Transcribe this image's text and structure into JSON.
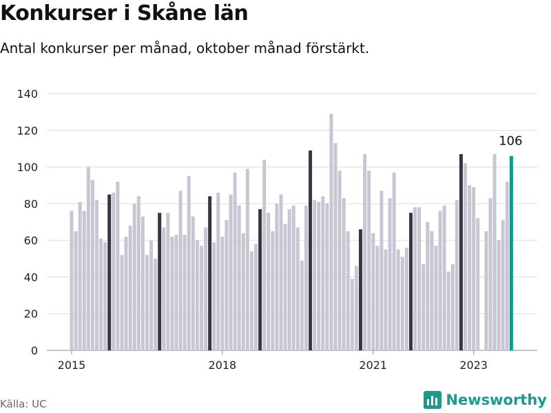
{
  "header": {
    "title": "Konkurser i Skåne län",
    "subtitle": "Antal konkurser per månad, oktober månad förstärkt."
  },
  "footer": {
    "source": "Källa: UC",
    "brand": "Newsworthy",
    "brand_icon": "newsworthy-logo-icon"
  },
  "colors": {
    "bar": "#c8c6d3",
    "highlight": "#373643",
    "latest": "#0e9a8e",
    "grid": "#dcdcdc",
    "brand": "#1a9b8d"
  },
  "chart_data": {
    "type": "bar",
    "title": "Konkurser i Skåne län",
    "subtitle": "Antal konkurser per månad, oktober månad förstärkt.",
    "xlabel": "",
    "ylabel": "",
    "ylim": [
      0,
      140
    ],
    "y_ticks": [
      0,
      20,
      40,
      60,
      80,
      100,
      120,
      140
    ],
    "x_ticks": [
      {
        "label": "2015",
        "index": 0
      },
      {
        "label": "2018",
        "index": 36
      },
      {
        "label": "2021",
        "index": 72
      },
      {
        "label": "2023",
        "index": 96
      }
    ],
    "grid": "horizontal",
    "start": "2015-01",
    "end": "2023-10",
    "highlight_month": "October",
    "categories": [
      "2015-01",
      "2015-02",
      "2015-03",
      "2015-04",
      "2015-05",
      "2015-06",
      "2015-07",
      "2015-08",
      "2015-09",
      "2015-10",
      "2015-11",
      "2015-12",
      "2016-01",
      "2016-02",
      "2016-03",
      "2016-04",
      "2016-05",
      "2016-06",
      "2016-07",
      "2016-08",
      "2016-09",
      "2016-10",
      "2016-11",
      "2016-12",
      "2017-01",
      "2017-02",
      "2017-03",
      "2017-04",
      "2017-05",
      "2017-06",
      "2017-07",
      "2017-08",
      "2017-09",
      "2017-10",
      "2017-11",
      "2017-12",
      "2018-01",
      "2018-02",
      "2018-03",
      "2018-04",
      "2018-05",
      "2018-06",
      "2018-07",
      "2018-08",
      "2018-09",
      "2018-10",
      "2018-11",
      "2018-12",
      "2019-01",
      "2019-02",
      "2019-03",
      "2019-04",
      "2019-05",
      "2019-06",
      "2019-07",
      "2019-08",
      "2019-09",
      "2019-10",
      "2019-11",
      "2019-12",
      "2020-01",
      "2020-02",
      "2020-03",
      "2020-04",
      "2020-05",
      "2020-06",
      "2020-07",
      "2020-08",
      "2020-09",
      "2020-10",
      "2020-11",
      "2020-12",
      "2021-01",
      "2021-02",
      "2021-03",
      "2021-04",
      "2021-05",
      "2021-06",
      "2021-07",
      "2021-08",
      "2021-09",
      "2021-10",
      "2021-11",
      "2021-12",
      "2022-01",
      "2022-02",
      "2022-03",
      "2022-04",
      "2022-05",
      "2022-06",
      "2022-07",
      "2022-08",
      "2022-09",
      "2022-10",
      "2022-11",
      "2022-12",
      "2023-01",
      "2023-02",
      "2023-03",
      "2023-04",
      "2023-05",
      "2023-06",
      "2023-07",
      "2023-08",
      "2023-09",
      "2023-10"
    ],
    "values": [
      76,
      65,
      81,
      76,
      100,
      93,
      82,
      61,
      59,
      85,
      86,
      92,
      52,
      62,
      68,
      80,
      84,
      73,
      52,
      60,
      50,
      75,
      67,
      75,
      62,
      63,
      87,
      63,
      95,
      73,
      60,
      57,
      67,
      84,
      59,
      86,
      62,
      71,
      85,
      97,
      79,
      64,
      99,
      54,
      58,
      77,
      104,
      75,
      65,
      80,
      85,
      69,
      77,
      79,
      67,
      49,
      79,
      109,
      82,
      81,
      84,
      80,
      129,
      113,
      98,
      83,
      65,
      39,
      46,
      66,
      107,
      98,
      64,
      57,
      87,
      55,
      83,
      97,
      55,
      51,
      56,
      75,
      78,
      78,
      47,
      70,
      65,
      57,
      76,
      79,
      43,
      47,
      82,
      107,
      102,
      90,
      89,
      72,
      0,
      65,
      83,
      107,
      60,
      71,
      92,
      106
    ],
    "annotations": [
      {
        "index": 105,
        "label": "106"
      }
    ]
  }
}
